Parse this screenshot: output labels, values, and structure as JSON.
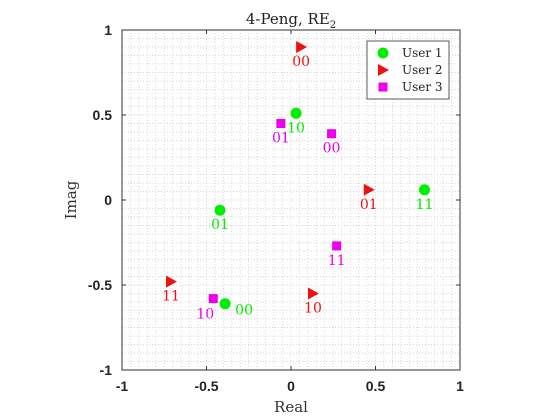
{
  "chart_data": {
    "type": "scatter",
    "title": "4-Peng, RE",
    "title_subscript": "2",
    "xlabel": "Real",
    "ylabel": "Imag",
    "xlim": [
      -1,
      1
    ],
    "ylim": [
      -1,
      1
    ],
    "xticks": [
      {
        "value": -1,
        "label": "-1"
      },
      {
        "value": -0.5,
        "label": "-0.5"
      },
      {
        "value": 0,
        "label": "0"
      },
      {
        "value": 0.5,
        "label": "0.5"
      },
      {
        "value": 1,
        "label": "1"
      }
    ],
    "yticks": [
      {
        "value": -1,
        "label": "-1"
      },
      {
        "value": -0.5,
        "label": "-0.5"
      },
      {
        "value": 0,
        "label": "0"
      },
      {
        "value": 0.5,
        "label": "0.5"
      },
      {
        "value": 1,
        "label": "1"
      }
    ],
    "grid": "minor-dotted",
    "legend_position": "top-right",
    "series": [
      {
        "name": "User 1",
        "marker": "circle",
        "color": "#00ee00",
        "points": [
          {
            "x": 0.03,
            "y": 0.51,
            "label": "10"
          },
          {
            "x": -0.42,
            "y": -0.06,
            "label": "01"
          },
          {
            "x": 0.79,
            "y": 0.06,
            "label": "11"
          },
          {
            "x": -0.39,
            "y": -0.61,
            "label": "00"
          }
        ]
      },
      {
        "name": "User 2",
        "marker": "triangle-right",
        "color": "#ee1111",
        "points": [
          {
            "x": 0.06,
            "y": 0.9,
            "label": "00"
          },
          {
            "x": 0.46,
            "y": 0.06,
            "label": "01"
          },
          {
            "x": -0.71,
            "y": -0.48,
            "label": "11"
          },
          {
            "x": 0.13,
            "y": -0.55,
            "label": "10"
          }
        ]
      },
      {
        "name": "User 3",
        "marker": "square",
        "color": "#ee00ee",
        "points": [
          {
            "x": -0.06,
            "y": 0.45,
            "label": "01"
          },
          {
            "x": 0.24,
            "y": 0.39,
            "label": "00"
          },
          {
            "x": 0.27,
            "y": -0.27,
            "label": "11"
          },
          {
            "x": -0.46,
            "y": -0.58,
            "label": "10"
          }
        ]
      }
    ]
  }
}
